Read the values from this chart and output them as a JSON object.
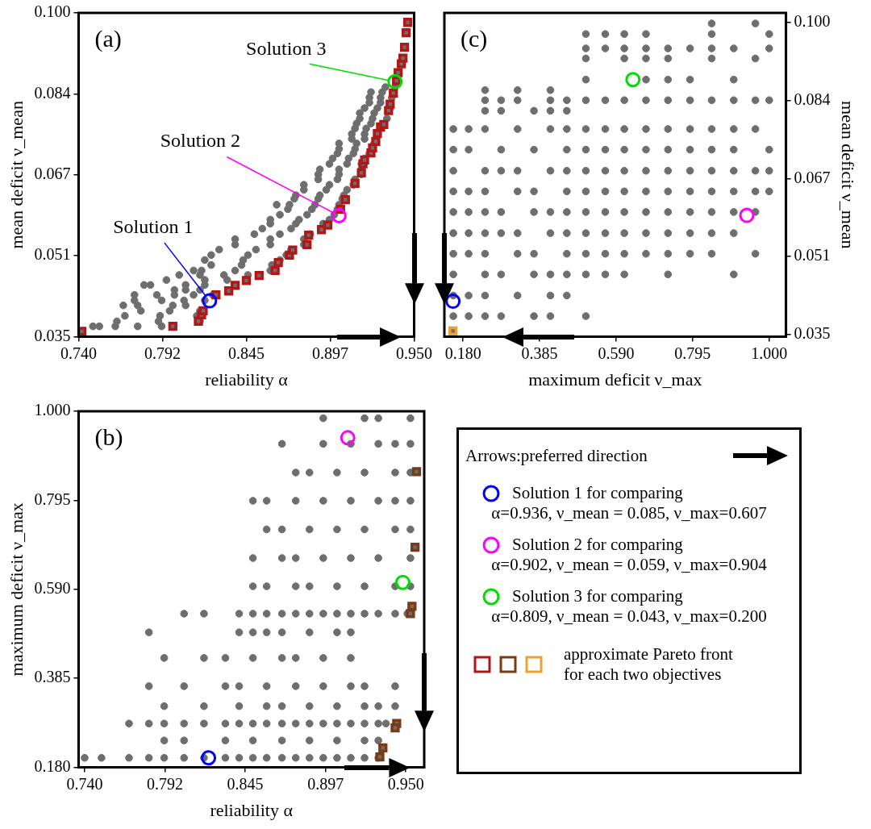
{
  "chart_data": [
    {
      "type": "scatter",
      "xlabel": "reliability α",
      "ylabel": "mean deficit ν_mean",
      "annotations": [
        "(a)"
      ],
      "xlim": [
        0.74,
        0.95
      ],
      "xticks": [
        {
          "value": 0.74,
          "label": "0.740"
        },
        {
          "value": 0.7925,
          "label": "0.792"
        },
        0.845,
        {
          "value": 0.8975,
          "label": "0.897"
        },
        {
          "value": 0.95,
          "label": "0.950"
        }
      ],
      "ylim": [
        0.035,
        0.1
      ],
      "yticks": [
        0.035,
        {
          "value": 0.05125,
          "label": "0.051"
        },
        {
          "value": 0.0675,
          "label": "0.067"
        },
        {
          "value": 0.08375,
          "label": "0.084"
        },
        {
          "value": 0.1,
          "label": "0.100"
        }
      ],
      "series": [
        {
          "color": "#6e6e6e",
          "marker": "circle",
          "x": [
            0.749,
            0.753,
            0.763,
            0.777,
            0.792,
            0.764,
            0.79,
            0.816,
            0.769,
            0.791,
            0.814,
            0.779,
            0.797,
            0.816,
            0.768,
            0.777,
            0.799,
            0.807,
            0.775,
            0.792,
            0.806,
            0.819,
            0.775,
            0.789,
            0.8,
            0.812,
            0.824,
            0.8,
            0.807,
            0.816,
            0.781,
            0.785,
            0.807,
            0.819,
            0.795,
            0.819,
            0.833,
            0.803,
            0.816,
            0.831,
            0.846,
            0.812,
            0.817,
            0.838,
            0.86,
            0.823,
            0.842,
            0.861,
            0.819,
            0.843,
            0.866,
            0.823,
            0.846,
            0.87,
            0.828,
            0.851,
            0.873,
            0.838,
            0.86,
            0.881,
            0.838,
            0.86,
            0.881,
            0.85,
            0.866,
            0.885,
            0.855,
            0.873,
            0.86,
            0.876,
            0.893,
            0.86,
            0.878,
            0.897,
            0.866,
            0.883,
            0.9,
            0.871,
            0.886,
            0.902,
            0.864,
            0.872,
            0.888,
            0.903,
            0.875,
            0.89,
            0.905,
            0.876,
            0.891,
            0.906,
            0.881,
            0.895,
            0.908,
            0.881,
            0.897,
            0.912,
            0.89,
            0.902,
            0.913,
            0.89,
            0.903,
            0.917,
            0.891,
            0.903,
            0.917,
            0.897,
            0.908,
            0.917,
            0.899,
            0.909,
            0.919,
            0.902,
            0.912,
            0.922,
            0.903,
            0.913,
            0.903,
            0.914,
            0.925,
            0.911,
            0.919,
            0.911,
            0.919,
            0.913,
            0.92,
            0.914,
            0.923,
            0.916,
            0.924,
            0.933,
            0.916,
            0.925,
            0.919,
            0.927,
            0.935,
            0.922,
            0.929,
            0.922,
            0.929,
            0.936,
            0.923,
            0.93,
            0.932,
            0.938
          ],
          "values": [
            0.0371,
            0.0371,
            0.0371,
            0.0371,
            0.0371,
            0.0381,
            0.0381,
            0.0381,
            0.0392,
            0.0392,
            0.0392,
            0.0402,
            0.0402,
            0.0402,
            0.0413,
            0.0413,
            0.0413,
            0.0413,
            0.0423,
            0.0423,
            0.0423,
            0.0423,
            0.0434,
            0.0434,
            0.0434,
            0.0434,
            0.0434,
            0.0444,
            0.0444,
            0.0444,
            0.0454,
            0.0454,
            0.0454,
            0.0454,
            0.0464,
            0.0464,
            0.0464,
            0.0474,
            0.0474,
            0.0474,
            0.0474,
            0.0483,
            0.0483,
            0.0483,
            0.0483,
            0.0494,
            0.0494,
            0.0494,
            0.0504,
            0.0504,
            0.0504,
            0.0514,
            0.0514,
            0.0514,
            0.0525,
            0.0525,
            0.0525,
            0.0535,
            0.0535,
            0.0535,
            0.0546,
            0.0546,
            0.0546,
            0.0556,
            0.0556,
            0.0556,
            0.0567,
            0.0567,
            0.0577,
            0.0577,
            0.0577,
            0.0585,
            0.0585,
            0.0585,
            0.0595,
            0.0595,
            0.0595,
            0.0606,
            0.0606,
            0.0606,
            0.0615,
            0.0615,
            0.0615,
            0.0615,
            0.0627,
            0.0627,
            0.0627,
            0.0634,
            0.0634,
            0.0634,
            0.0645,
            0.0645,
            0.0645,
            0.0655,
            0.0655,
            0.0655,
            0.0666,
            0.0666,
            0.0666,
            0.0676,
            0.0676,
            0.0676,
            0.0686,
            0.0686,
            0.0686,
            0.0697,
            0.0697,
            0.0697,
            0.0708,
            0.0708,
            0.0708,
            0.0718,
            0.0718,
            0.0718,
            0.0727,
            0.0727,
            0.0738,
            0.0738,
            0.0738,
            0.0747,
            0.0747,
            0.0757,
            0.0757,
            0.0768,
            0.0768,
            0.0778,
            0.0778,
            0.0788,
            0.0788,
            0.0788,
            0.0799,
            0.0799,
            0.0809,
            0.0809,
            0.0809,
            0.082,
            0.082,
            0.083,
            0.083,
            0.083,
            0.0841,
            0.0841,
            0.0851,
            0.0851
          ]
        },
        {
          "color": "#b01818",
          "marker": "square",
          "x": [
            0.742,
            0.799,
            0.815,
            0.817,
            0.818,
            0.826,
            0.834,
            0.838,
            0.845,
            0.853,
            0.863,
            0.865,
            0.872,
            0.874,
            0.883,
            0.884,
            0.892,
            0.896,
            0.904,
            0.907,
            0.913,
            0.917,
            0.918,
            0.919,
            0.923,
            0.924,
            0.926,
            0.927,
            0.929,
            0.931,
            0.934,
            0.935,
            0.937,
            0.939,
            0.94,
            0.942,
            0.943,
            0.944,
            0.945,
            0.946
          ],
          "values": [
            0.0361,
            0.0371,
            0.0381,
            0.0394,
            0.0402,
            0.0434,
            0.0442,
            0.0453,
            0.0463,
            0.0473,
            0.0483,
            0.0499,
            0.0514,
            0.0524,
            0.0535,
            0.0554,
            0.0565,
            0.0574,
            0.0606,
            0.0625,
            0.0658,
            0.0679,
            0.0697,
            0.0705,
            0.0719,
            0.0729,
            0.0742,
            0.0758,
            0.0771,
            0.0776,
            0.0804,
            0.0817,
            0.0839,
            0.0864,
            0.088,
            0.0898,
            0.0909,
            0.0931,
            0.096,
            0.0981
          ]
        },
        {
          "name": "Solution 1",
          "color": "#0000ff",
          "marker": "circle",
          "x": [
            0.822
          ],
          "values": [
            0.0422
          ]
        },
        {
          "name": "Solution 2",
          "color": "#ff00ff",
          "marker": "circle",
          "x": [
            0.903
          ],
          "values": [
            0.0593
          ]
        },
        {
          "name": "Solution 3",
          "color": "#00dd00",
          "marker": "circle",
          "x": [
            0.938
          ],
          "values": [
            0.0862
          ]
        }
      ]
    },
    {
      "type": "scatter",
      "xlabel": "maximum deficit ν_max",
      "y2label": "mean deficit ν_mean",
      "annotations": [
        "(c)"
      ],
      "xlim": [
        0.13,
        1.045
      ],
      "xticks": [
        {
          "value": 0.18,
          "label": "0.180"
        },
        0.385,
        {
          "value": 0.59,
          "label": "0.590"
        },
        0.795,
        {
          "value": 1,
          "label": "1.000"
        }
      ],
      "y2lim": [
        0.0345,
        0.102
      ],
      "y2ticks": [
        0.035,
        {
          "value": 0.05125,
          "label": "0.051"
        },
        {
          "value": 0.0675,
          "label": "0.067"
        },
        {
          "value": 0.08375,
          "label": "0.084"
        },
        {
          "value": 0.1,
          "label": "0.100"
        }
      ],
      "series": [
        {
          "color": "#6e6e6e",
          "marker": "circle",
          "axis": "y2",
          "x": [
            0.239,
            0.326,
            0.414,
            0.239,
            0.282,
            0.326,
            0.414,
            0.458,
            0.239,
            0.282,
            0.37,
            0.414,
            0.458,
            0.154,
            0.195,
            0.239,
            0.326,
            0.414,
            0.458,
            0.154,
            0.195,
            0.282,
            0.37,
            0.458,
            0.154,
            0.239,
            0.282,
            0.326,
            0.414,
            0.458,
            0.154,
            0.195,
            0.239,
            0.326,
            0.37,
            0.458,
            0.154,
            0.195,
            0.239,
            0.282,
            0.37,
            0.414,
            0.458,
            0.154,
            0.195,
            0.239,
            0.282,
            0.326,
            0.414,
            0.458,
            0.154,
            0.195,
            0.239,
            0.326,
            0.37,
            0.458,
            0.154,
            0.239,
            0.282,
            0.37,
            0.414,
            0.458,
            0.154,
            0.195,
            0.239,
            0.326,
            0.414,
            0.458,
            0.154,
            0.195,
            0.239,
            0.282,
            0.37,
            0.414,
            0.509,
            0.846,
            0.963,
            0.509,
            0.561,
            0.612,
            0.67,
            0.846,
            1.0,
            0.509,
            0.561,
            0.612,
            0.67,
            0.729,
            0.788,
            0.846,
            0.905,
            1.0,
            0.509,
            0.612,
            0.67,
            0.729,
            0.846,
            0.963,
            0.509,
            0.67,
            0.729,
            0.788,
            0.905,
            0.509,
            0.561,
            0.612,
            0.67,
            0.729,
            0.788,
            0.846,
            0.905,
            0.963,
            1.0,
            0.509,
            0.561,
            0.612,
            0.67,
            0.729,
            0.788,
            0.846,
            0.905,
            0.963,
            0.509,
            0.561,
            0.612,
            0.67,
            0.729,
            0.788,
            0.846,
            0.905,
            1.0,
            0.509,
            0.561,
            0.612,
            0.67,
            0.729,
            0.788,
            0.846,
            0.905,
            0.963,
            1.0,
            0.509,
            0.561,
            0.612,
            0.67,
            0.729,
            0.788,
            0.846,
            0.905,
            0.963,
            1.0,
            0.509,
            0.561,
            0.612,
            0.67,
            0.729,
            0.788,
            0.846,
            0.905,
            0.963,
            0.509,
            0.561,
            0.612,
            0.67,
            0.729,
            0.788,
            0.846,
            0.905,
            0.509,
            0.561,
            0.612,
            0.67,
            0.729,
            0.788,
            0.846,
            0.963,
            0.509,
            0.561,
            0.612,
            0.729,
            0.905
          ],
          "values": [
            0.0859,
            0.0859,
            0.0859,
            0.0838,
            0.0838,
            0.0838,
            0.0838,
            0.0838,
            0.0816,
            0.0816,
            0.0816,
            0.0816,
            0.0816,
            0.0778,
            0.0778,
            0.0778,
            0.0778,
            0.0778,
            0.0778,
            0.0735,
            0.0735,
            0.0735,
            0.0735,
            0.0735,
            0.0691,
            0.0691,
            0.0691,
            0.0691,
            0.0691,
            0.0691,
            0.0648,
            0.0648,
            0.0648,
            0.0648,
            0.0648,
            0.0648,
            0.0605,
            0.0605,
            0.0605,
            0.0605,
            0.0605,
            0.0605,
            0.0605,
            0.0561,
            0.0561,
            0.0561,
            0.0561,
            0.0561,
            0.0561,
            0.0561,
            0.0518,
            0.0518,
            0.0518,
            0.0518,
            0.0518,
            0.0518,
            0.0475,
            0.0475,
            0.0475,
            0.0475,
            0.0475,
            0.0475,
            0.0431,
            0.0431,
            0.0431,
            0.0431,
            0.0431,
            0.0431,
            0.0388,
            0.0388,
            0.0388,
            0.0388,
            0.0388,
            0.0388,
            0.0388,
            0.0998,
            0.0998,
            0.0976,
            0.0976,
            0.0976,
            0.0976,
            0.0976,
            0.0976,
            0.0946,
            0.0946,
            0.0946,
            0.0946,
            0.0946,
            0.0946,
            0.0946,
            0.0946,
            0.0946,
            0.0925,
            0.0925,
            0.0925,
            0.0925,
            0.0925,
            0.0925,
            0.0881,
            0.0881,
            0.0881,
            0.0881,
            0.0881,
            0.0838,
            0.0838,
            0.0838,
            0.0838,
            0.0838,
            0.0838,
            0.0838,
            0.0838,
            0.0838,
            0.0838,
            0.0778,
            0.0778,
            0.0778,
            0.0778,
            0.0778,
            0.0778,
            0.0778,
            0.0778,
            0.0778,
            0.0735,
            0.0735,
            0.0735,
            0.0735,
            0.0735,
            0.0735,
            0.0735,
            0.0735,
            0.0735,
            0.0691,
            0.0691,
            0.0691,
            0.0691,
            0.0691,
            0.0691,
            0.0691,
            0.0691,
            0.0691,
            0.0691,
            0.0648,
            0.0648,
            0.0648,
            0.0648,
            0.0648,
            0.0648,
            0.0648,
            0.0648,
            0.0648,
            0.0648,
            0.0605,
            0.0605,
            0.0605,
            0.0605,
            0.0605,
            0.0605,
            0.0605,
            0.0605,
            0.0605,
            0.0561,
            0.0561,
            0.0561,
            0.0561,
            0.0561,
            0.0561,
            0.0561,
            0.0561,
            0.0518,
            0.0518,
            0.0518,
            0.0518,
            0.0518,
            0.0518,
            0.0518,
            0.0518,
            0.0475,
            0.0475,
            0.0475,
            0.0475,
            0.0475
          ]
        },
        {
          "color": "#f0a030",
          "marker": "square",
          "axis": "y2",
          "x": [
            0.153
          ],
          "values": [
            0.0357
          ]
        },
        {
          "color": "#0000ff",
          "marker": "circle",
          "axis": "y2",
          "x": [
            0.153
          ],
          "values": [
            0.0419
          ]
        },
        {
          "color": "#ff00ff",
          "marker": "circle",
          "axis": "y2",
          "x": [
            0.94
          ],
          "values": [
            0.0598
          ]
        },
        {
          "color": "#00dd00",
          "marker": "circle",
          "axis": "y2",
          "x": [
            0.635
          ],
          "values": [
            0.0881
          ]
        }
      ]
    },
    {
      "type": "scatter",
      "xlabel": "reliability α",
      "ylabel": "maximum deficit ν_max",
      "annotations": [
        "(b)"
      ],
      "xlim": [
        0.736,
        0.962
      ],
      "xticks": [
        {
          "value": 0.74,
          "label": "0.740"
        },
        {
          "value": 0.7925,
          "label": "0.792"
        },
        0.845,
        {
          "value": 0.8975,
          "label": "0.897"
        },
        {
          "value": 0.95,
          "label": "0.950"
        }
      ],
      "ylim": [
        0.18,
        1
      ],
      "yticks": [
        {
          "value": 0.18,
          "label": "0.180"
        },
        0.385,
        {
          "value": 0.59,
          "label": "0.590"
        },
        0.795,
        {
          "value": 1,
          "label": "1.000"
        }
      ],
      "series": [
        {
          "color": "#6e6e6e",
          "marker": "circle",
          "x": [
            0.896,
            0.923,
            0.932,
            0.953,
            0.869,
            0.896,
            0.914,
            0.932,
            0.943,
            0.953,
            0.878,
            0.887,
            0.905,
            0.923,
            0.943,
            0.953,
            0.85,
            0.859,
            0.878,
            0.896,
            0.914,
            0.932,
            0.943,
            0.953,
            0.859,
            0.869,
            0.887,
            0.905,
            0.923,
            0.943,
            0.953,
            0.85,
            0.869,
            0.878,
            0.896,
            0.914,
            0.932,
            0.953,
            0.85,
            0.859,
            0.878,
            0.887,
            0.905,
            0.923,
            0.943,
            0.953,
            0.805,
            0.818,
            0.841,
            0.85,
            0.859,
            0.869,
            0.878,
            0.887,
            0.896,
            0.905,
            0.914,
            0.923,
            0.932,
            0.943,
            0.951,
            0.782,
            0.841,
            0.85,
            0.859,
            0.869,
            0.887,
            0.905,
            0.914,
            0.792,
            0.818,
            0.832,
            0.85,
            0.869,
            0.878,
            0.896,
            0.914,
            0.782,
            0.805,
            0.832,
            0.841,
            0.859,
            0.878,
            0.896,
            0.914,
            0.923,
            0.943,
            0.792,
            0.818,
            0.841,
            0.859,
            0.869,
            0.887,
            0.905,
            0.923,
            0.932,
            0.943,
            0.769,
            0.782,
            0.792,
            0.805,
            0.818,
            0.832,
            0.841,
            0.85,
            0.859,
            0.869,
            0.878,
            0.887,
            0.896,
            0.905,
            0.914,
            0.923,
            0.932,
            0.937,
            0.792,
            0.805,
            0.832,
            0.85,
            0.869,
            0.887,
            0.905,
            0.923,
            0.932,
            0.74,
            0.751,
            0.769,
            0.782,
            0.792,
            0.805,
            0.818,
            0.832,
            0.841,
            0.85,
            0.859,
            0.869,
            0.878,
            0.887,
            0.896,
            0.905,
            0.914,
            0.923,
            0.932
          ],
          "values": [
            0.984,
            0.984,
            0.984,
            0.984,
            0.925,
            0.925,
            0.925,
            0.925,
            0.925,
            0.925,
            0.859,
            0.859,
            0.859,
            0.859,
            0.859,
            0.859,
            0.794,
            0.794,
            0.794,
            0.794,
            0.794,
            0.794,
            0.794,
            0.794,
            0.728,
            0.728,
            0.728,
            0.728,
            0.728,
            0.728,
            0.728,
            0.662,
            0.662,
            0.662,
            0.662,
            0.662,
            0.662,
            0.662,
            0.597,
            0.597,
            0.597,
            0.597,
            0.597,
            0.597,
            0.597,
            0.597,
            0.534,
            0.534,
            0.534,
            0.534,
            0.534,
            0.534,
            0.534,
            0.534,
            0.534,
            0.534,
            0.534,
            0.534,
            0.534,
            0.534,
            0.534,
            0.491,
            0.491,
            0.491,
            0.491,
            0.491,
            0.491,
            0.491,
            0.491,
            0.432,
            0.432,
            0.432,
            0.432,
            0.432,
            0.432,
            0.432,
            0.432,
            0.367,
            0.367,
            0.367,
            0.367,
            0.367,
            0.367,
            0.367,
            0.367,
            0.367,
            0.367,
            0.321,
            0.321,
            0.321,
            0.321,
            0.321,
            0.321,
            0.321,
            0.321,
            0.321,
            0.321,
            0.281,
            0.281,
            0.281,
            0.281,
            0.281,
            0.281,
            0.281,
            0.281,
            0.281,
            0.281,
            0.281,
            0.281,
            0.281,
            0.281,
            0.281,
            0.281,
            0.281,
            0.281,
            0.242,
            0.242,
            0.242,
            0.242,
            0.242,
            0.242,
            0.242,
            0.242,
            0.242,
            0.202,
            0.202,
            0.202,
            0.202,
            0.202,
            0.202,
            0.202,
            0.202,
            0.202,
            0.202,
            0.202,
            0.202,
            0.202,
            0.202,
            0.202,
            0.202,
            0.202,
            0.202,
            0.202
          ]
        },
        {
          "color": "#7a3a14",
          "marker": "square",
          "x": [
            0.957,
            0.956,
            0.954,
            0.953,
            0.944,
            0.943,
            0.935,
            0.933
          ],
          "values": [
            0.861,
            0.687,
            0.551,
            0.534,
            0.281,
            0.271,
            0.225,
            0.204
          ]
        },
        {
          "color": "#0000ff",
          "marker": "circle",
          "x": [
            0.821
          ],
          "values": [
            0.202
          ]
        },
        {
          "color": "#ff00ff",
          "marker": "circle",
          "x": [
            0.912
          ],
          "values": [
            0.939
          ]
        },
        {
          "color": "#00dd00",
          "marker": "circle",
          "x": [
            0.948
          ],
          "values": [
            0.606
          ]
        }
      ]
    },
    {
      "type": "other",
      "annotations": [
        "Arrows:preferred direction",
        "Solution 1 for comparing",
        "α=0.936, ν_mean = 0.085, ν_max=0.607",
        "Solution 2 for comparing",
        "α=0.902, ν_mean = 0.059, ν_max=0.904",
        "Solution 3 for comparing",
        "α=0.809, ν_mean = 0.043, ν_max=0.200",
        "approximate Pareto front for each two objectives"
      ]
    }
  ]
}
